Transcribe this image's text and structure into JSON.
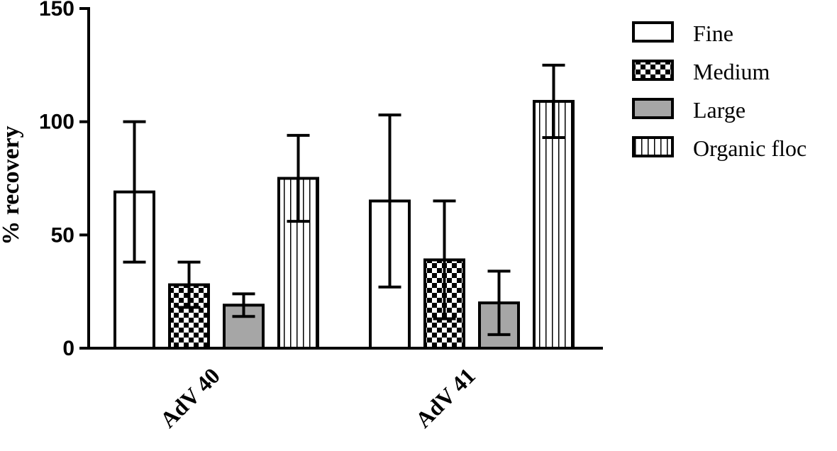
{
  "chart_data": {
    "type": "bar",
    "categories": [
      "AdV 40",
      "AdV 41"
    ],
    "ylabel": "% recovery",
    "xlabel": "",
    "ylim": [
      0,
      150
    ],
    "yticks": [
      0,
      50,
      100,
      150
    ],
    "grid": false,
    "legend_position": "right",
    "series": [
      {
        "name": "Fine",
        "pattern": "none",
        "fill": "#ffffff",
        "values": [
          69,
          65
        ],
        "errors": [
          31,
          38
        ]
      },
      {
        "name": "Medium",
        "pattern": "checker",
        "fill": "#ffffff",
        "values": [
          28,
          39
        ],
        "errors": [
          10,
          26
        ]
      },
      {
        "name": "Large",
        "pattern": "solid",
        "fill": "#a6a6a6",
        "values": [
          19,
          20
        ],
        "errors": [
          5,
          14
        ]
      },
      {
        "name": "Organic floc",
        "pattern": "vertical-lines",
        "fill": "#ffffff",
        "values": [
          75,
          109
        ],
        "errors": [
          19,
          16
        ]
      }
    ]
  }
}
